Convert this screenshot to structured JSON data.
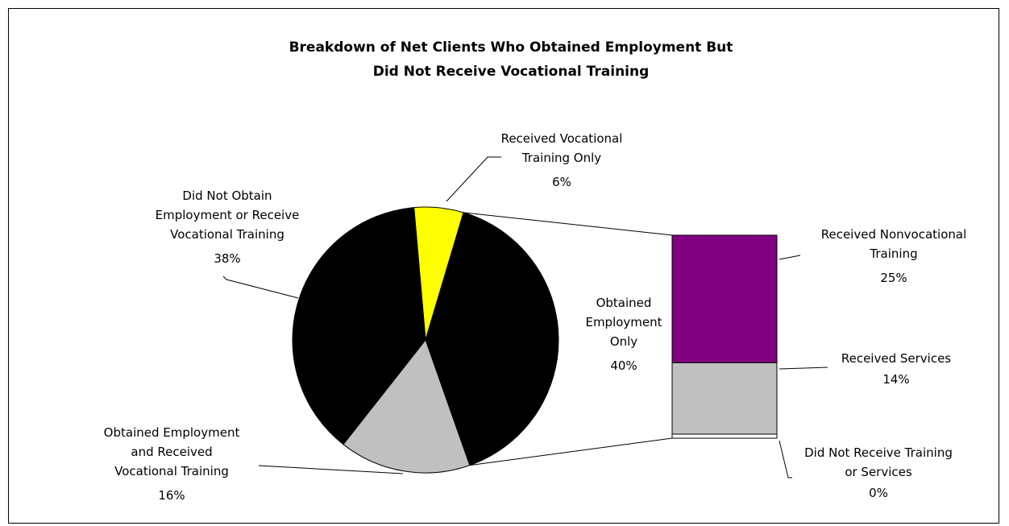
{
  "chart_data": [
    {
      "type": "pie",
      "title": "Breakdown of Net Clients Who Obtained Employment But Did Not Receive Vocational Training",
      "title_lines": [
        "Breakdown of Net Clients Who Obtained Employment But",
        "Did Not Receive Vocational Training"
      ],
      "slices": [
        {
          "label": "Received Vocational Training Only",
          "label_lines": [
            "Received Vocational",
            "Training Only"
          ],
          "value": 6,
          "value_label": "6%",
          "color": "#ffff00"
        },
        {
          "label": "Obtained Employment Only",
          "label_lines": [
            "Obtained",
            "Employment",
            "Only"
          ],
          "value": 40,
          "value_label": "40%",
          "color": "#000000"
        },
        {
          "label": "Obtained Employment and Received Vocational Training",
          "label_lines": [
            "Obtained Employment",
            "and Received",
            "Vocational Training"
          ],
          "value": 16,
          "value_label": "16%",
          "color": "#c0c0c0"
        },
        {
          "label": "Did Not Obtain Employment or Receive Vocational Training",
          "label_lines": [
            "Did Not Obtain",
            "Employment or Receive",
            "Vocational Training"
          ],
          "value": 38,
          "value_label": "38%",
          "color": "#000000"
        }
      ]
    },
    {
      "type": "bar",
      "stacked": true,
      "breakdown_of": "Obtained Employment Only",
      "segments": [
        {
          "label": "Received Nonvocational Training",
          "label_lines": [
            "Received Nonvocational",
            "Training"
          ],
          "value": 25,
          "value_label": "25%",
          "color": "#800080"
        },
        {
          "label": "Received Services",
          "label_lines": [
            "Received Services"
          ],
          "value": 14,
          "value_label": "14%",
          "color": "#c0c0c0"
        },
        {
          "label": "Did Not Receive Training or Services",
          "label_lines": [
            "Did Not Receive Training",
            "or Services"
          ],
          "value": 0,
          "value_label": "0%",
          "color": "#ffffff"
        }
      ]
    }
  ]
}
